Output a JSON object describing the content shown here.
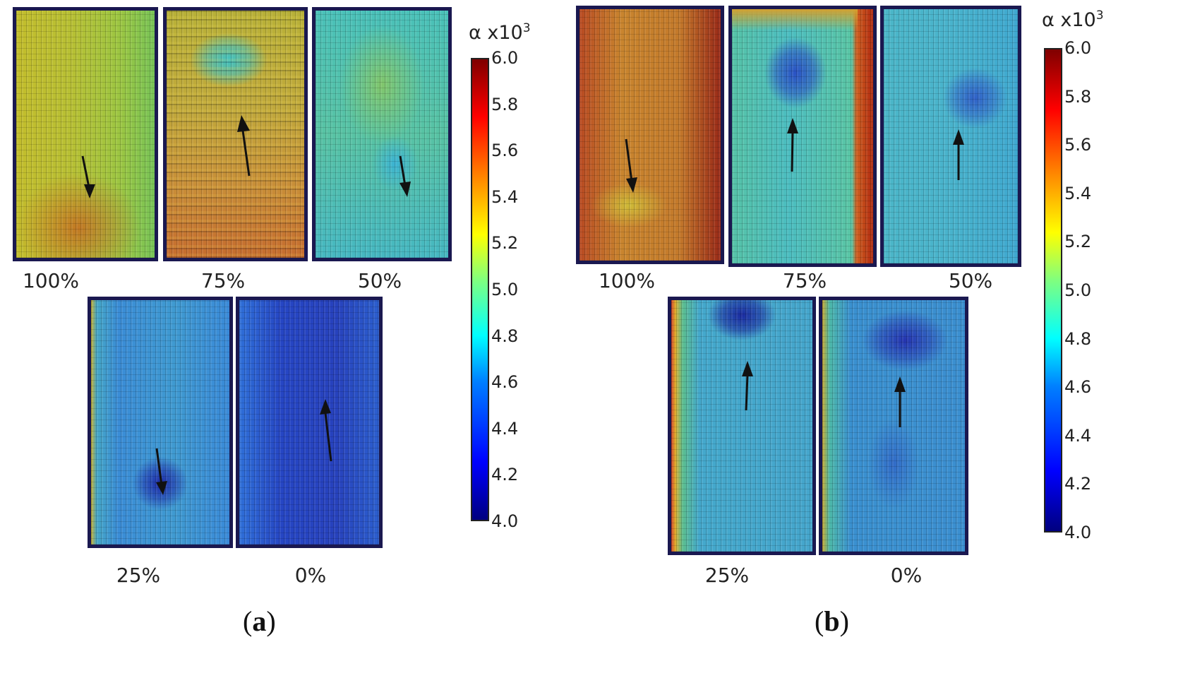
{
  "colorbar": {
    "label": "α x10",
    "superscript": "3",
    "ticks": [
      "6.0",
      "5.8",
      "5.6",
      "5.4",
      "5.2",
      "5.0",
      "4.8",
      "4.6",
      "4.4",
      "4.2",
      "4.0"
    ]
  },
  "panels": [
    {
      "caption_open": "(",
      "caption_letter": "a",
      "caption_close": ")",
      "tiles": [
        {
          "label": "100%"
        },
        {
          "label": "75%"
        },
        {
          "label": "50%"
        },
        {
          "label": "25%"
        },
        {
          "label": "0%"
        }
      ]
    },
    {
      "caption_open": "(",
      "caption_letter": "b",
      "caption_close": ")",
      "tiles": [
        {
          "label": "100%"
        },
        {
          "label": "75%"
        },
        {
          "label": "50%"
        },
        {
          "label": "25%"
        },
        {
          "label": "0%"
        }
      ]
    }
  ]
}
